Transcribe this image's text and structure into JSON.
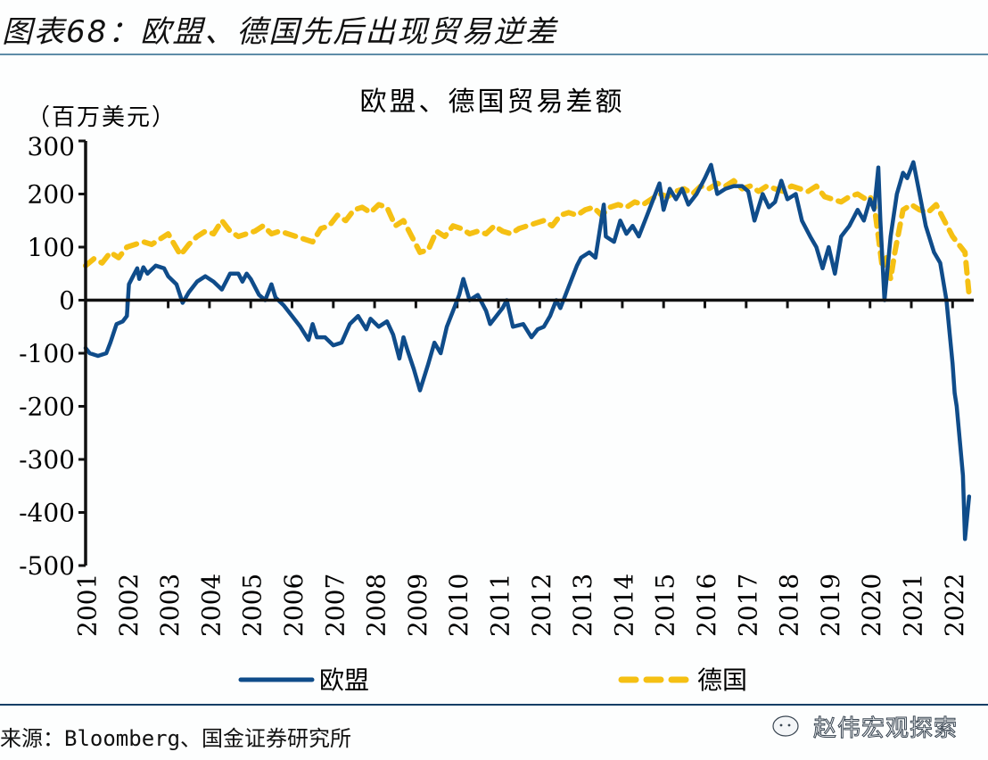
{
  "figure": {
    "title": "图表68：欧盟、德国先后出现贸易逆差",
    "source": "来源：Bloomberg、国金证券研究所",
    "watermark": "赵伟宏观探索",
    "watermark_icon": "wechat-icon"
  },
  "chart_data": {
    "type": "line",
    "title": "欧盟、德国贸易差额",
    "ylabel": "（百万美元）",
    "xlabel": "",
    "ylim": [
      -500,
      300
    ],
    "yticks": [
      "300",
      "200",
      "100",
      "0",
      "-100",
      "-200",
      "-300",
      "-400",
      "-500"
    ],
    "xlim": [
      2001,
      2022.5
    ],
    "xticks": [
      "2001",
      "2002",
      "2003",
      "2004",
      "2005",
      "2006",
      "2007",
      "2008",
      "2009",
      "2010",
      "2011",
      "2012",
      "2013",
      "2014",
      "2015",
      "2016",
      "2017",
      "2018",
      "2019",
      "2020",
      "2021",
      "2022"
    ],
    "grid": false,
    "legend_position": "bottom",
    "colors": {
      "eu": "#0f4c8a",
      "germany": "#f5c013",
      "axis": "#111111"
    },
    "series": [
      {
        "key": "eu",
        "name": "欧盟",
        "style": "solid",
        "x": [
          2001.0,
          2001.1,
          2001.3,
          2001.5,
          2001.6,
          2001.75,
          2001.9,
          2002.0,
          2002.05,
          2002.15,
          2002.25,
          2002.3,
          2002.4,
          2002.5,
          2002.7,
          2002.9,
          2003.0,
          2003.2,
          2003.35,
          2003.5,
          2003.7,
          2003.9,
          2004.1,
          2004.3,
          2004.5,
          2004.7,
          2004.8,
          2004.9,
          2005.0,
          2005.2,
          2005.35,
          2005.5,
          2005.6,
          2005.8,
          2006.0,
          2006.2,
          2006.4,
          2006.5,
          2006.6,
          2006.8,
          2007.0,
          2007.2,
          2007.4,
          2007.6,
          2007.8,
          2007.9,
          2008.1,
          2008.3,
          2008.45,
          2008.6,
          2008.7,
          2008.8,
          2008.95,
          2009.1,
          2009.3,
          2009.45,
          2009.6,
          2009.75,
          2009.9,
          2010.05,
          2010.15,
          2010.3,
          2010.5,
          2010.7,
          2010.8,
          2010.95,
          2011.1,
          2011.2,
          2011.35,
          2011.6,
          2011.8,
          2011.95,
          2012.1,
          2012.25,
          2012.4,
          2012.5,
          2012.7,
          2012.9,
          2013.0,
          2013.2,
          2013.35,
          2013.55,
          2013.6,
          2013.8,
          2013.95,
          2014.1,
          2014.25,
          2014.4,
          2014.6,
          2014.75,
          2014.9,
          2015.0,
          2015.15,
          2015.3,
          2015.45,
          2015.6,
          2015.8,
          2016.0,
          2016.15,
          2016.3,
          2016.5,
          2016.7,
          2016.9,
          2017.05,
          2017.2,
          2017.4,
          2017.55,
          2017.7,
          2017.85,
          2018.0,
          2018.2,
          2018.35,
          2018.55,
          2018.7,
          2018.85,
          2019.0,
          2019.15,
          2019.3,
          2019.5,
          2019.7,
          2019.85,
          2020.0,
          2020.1,
          2020.2,
          2020.25,
          2020.35,
          2020.5,
          2020.65,
          2020.8,
          2020.9,
          2021.05,
          2021.2,
          2021.35,
          2021.55,
          2021.7,
          2021.85,
          2022.0,
          2022.05,
          2022.1,
          2022.25,
          2022.3,
          2022.4
        ],
        "values": [
          -90,
          -100,
          -105,
          -100,
          -80,
          -45,
          -40,
          -30,
          30,
          45,
          60,
          40,
          62,
          50,
          65,
          60,
          45,
          30,
          -5,
          15,
          35,
          45,
          35,
          20,
          50,
          50,
          35,
          50,
          40,
          10,
          0,
          30,
          5,
          -10,
          -30,
          -50,
          -75,
          -45,
          -70,
          -70,
          -85,
          -80,
          -45,
          -30,
          -55,
          -35,
          -50,
          -40,
          -65,
          -110,
          -70,
          -95,
          -130,
          -170,
          -120,
          -80,
          -100,
          -50,
          -20,
          10,
          40,
          0,
          10,
          -20,
          -45,
          -30,
          -15,
          0,
          -50,
          -45,
          -70,
          -55,
          -50,
          -30,
          0,
          -15,
          25,
          65,
          80,
          90,
          80,
          180,
          120,
          110,
          150,
          125,
          140,
          120,
          160,
          190,
          220,
          170,
          210,
          190,
          210,
          180,
          200,
          230,
          255,
          200,
          210,
          215,
          215,
          205,
          150,
          200,
          175,
          185,
          225,
          190,
          200,
          150,
          120,
          100,
          60,
          100,
          50,
          120,
          140,
          170,
          150,
          190,
          170,
          250,
          150,
          0,
          120,
          200,
          240,
          230,
          260,
          200,
          140,
          90,
          70,
          0,
          -120,
          -175,
          -200,
          -330,
          -450,
          -370
        ]
      },
      {
        "key": "germany",
        "name": "德国",
        "style": "dashed",
        "x": [
          2001.0,
          2001.2,
          2001.4,
          2001.6,
          2001.8,
          2002.0,
          2002.2,
          2002.4,
          2002.6,
          2002.8,
          2003.0,
          2003.15,
          2003.3,
          2003.5,
          2003.7,
          2003.9,
          2004.1,
          2004.3,
          2004.5,
          2004.7,
          2004.9,
          2005.1,
          2005.3,
          2005.5,
          2005.7,
          2005.9,
          2006.1,
          2006.3,
          2006.5,
          2006.7,
          2006.9,
          2007.1,
          2007.3,
          2007.5,
          2007.7,
          2007.9,
          2008.1,
          2008.3,
          2008.5,
          2008.7,
          2008.9,
          2009.1,
          2009.3,
          2009.5,
          2009.7,
          2009.9,
          2010.1,
          2010.3,
          2010.5,
          2010.7,
          2010.9,
          2011.1,
          2011.3,
          2011.5,
          2011.7,
          2011.9,
          2012.1,
          2012.3,
          2012.5,
          2012.7,
          2012.9,
          2013.1,
          2013.3,
          2013.5,
          2013.7,
          2013.9,
          2014.1,
          2014.3,
          2014.5,
          2014.7,
          2014.9,
          2015.1,
          2015.3,
          2015.5,
          2015.7,
          2015.9,
          2016.1,
          2016.3,
          2016.5,
          2016.7,
          2016.9,
          2017.1,
          2017.3,
          2017.5,
          2017.7,
          2017.9,
          2018.1,
          2018.3,
          2018.5,
          2018.7,
          2018.9,
          2019.1,
          2019.3,
          2019.5,
          2019.7,
          2019.9,
          2020.0,
          2020.1,
          2020.2,
          2020.3,
          2020.4,
          2020.5,
          2020.6,
          2020.8,
          2021.0,
          2021.2,
          2021.4,
          2021.6,
          2021.8,
          2022.0,
          2022.1,
          2022.2,
          2022.3,
          2022.4
        ],
        "values": [
          65,
          78,
          70,
          90,
          80,
          100,
          105,
          110,
          105,
          115,
          125,
          105,
          85,
          105,
          120,
          130,
          125,
          150,
          130,
          120,
          125,
          130,
          140,
          125,
          130,
          125,
          120,
          115,
          110,
          135,
          140,
          160,
          150,
          170,
          175,
          165,
          180,
          175,
          140,
          150,
          120,
          90,
          95,
          130,
          120,
          140,
          135,
          125,
          130,
          125,
          140,
          130,
          125,
          135,
          140,
          145,
          150,
          140,
          160,
          165,
          160,
          170,
          175,
          160,
          175,
          180,
          175,
          185,
          180,
          190,
          200,
          195,
          205,
          210,
          200,
          215,
          210,
          220,
          215,
          225,
          210,
          215,
          205,
          215,
          210,
          205,
          215,
          210,
          205,
          215,
          195,
          190,
          185,
          195,
          200,
          190,
          195,
          180,
          120,
          60,
          80,
          40,
          90,
          170,
          180,
          170,
          165,
          180,
          150,
          120,
          110,
          100,
          90,
          10
        ]
      }
    ]
  }
}
